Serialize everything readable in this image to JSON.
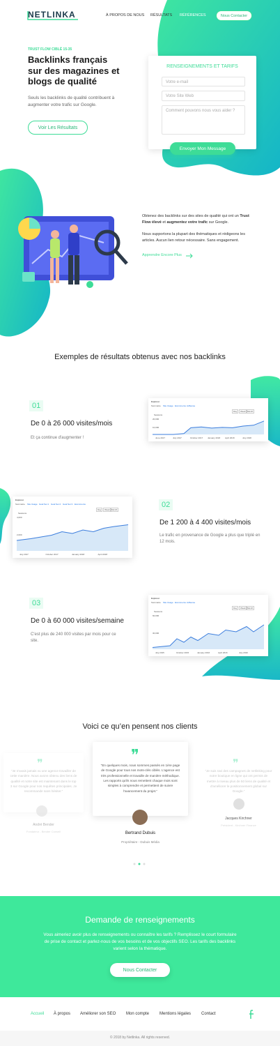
{
  "header": {
    "logo": "NETLINKA",
    "nav": [
      "À PROPOS DE NOUS",
      "RÉSULTATS",
      "RÉFÉRENCES"
    ],
    "cta": "Nous Contacter"
  },
  "hero": {
    "kicker": "TRUST FLOW CIBLÉ 15-35",
    "title": "Backlinks français sur des magazines et blogs de qualité",
    "text": "Seuls les backlinks de qualité contribuent à augmenter votre trafic sur Google.",
    "button": "Voir Les Résultats"
  },
  "form": {
    "title": "RENSEIGNEMENTS ET TARIFS",
    "fields": [
      "Votre e-mail",
      "Votre Site Web",
      "Comment pouvons nous vous aider ?"
    ],
    "button": "Envoyer Mon Message"
  },
  "about": {
    "p1": [
      "Obtenez des backlinks sur des sites de qualité qui ont un ",
      "Trust Flow élevé",
      " et ",
      "augmentez votre trafic",
      " sur Google."
    ],
    "p2": "Nous supportons la plupart des thématiques et rédigeons les articles. Aucun lien retour nécessaire. Sans engagement.",
    "link": "Apprendre Encore Plus"
  },
  "results": {
    "title": "Exemples de résultats obtenus avec nos backlinks",
    "items": [
      {
        "number": "01",
        "title": "De 0 à 26 000 visites/mois",
        "text": "Et ça continue d'augmenter !",
        "chart": {
          "header": "Explorer",
          "tabs": [
            "Sommaire",
            "Site Usage",
            "Ecommerce",
            "AdSense"
          ],
          "buttons": [
            "Day",
            "Week",
            "Month"
          ],
          "legend": "Sessions",
          "y_labels": [
            "20,000",
            "10,000"
          ],
          "x_labels": [
            "June 2017",
            "July 2017",
            "October 2017",
            "January 2018",
            "April 2018",
            "July 2018"
          ]
        }
      },
      {
        "number": "02",
        "title": "De 1 200 à 4 400 visites/mois",
        "text": "Le trafic en provenance de Google a plus que triplé en 12 mois.",
        "chart": {
          "header": "Explorer",
          "tabs": [
            "Sommaire",
            "Site Usage",
            "Goal Set 1",
            "Goal Set 2",
            "Goal Set 3",
            "Ecommerce"
          ],
          "buttons": [
            "Day",
            "Week",
            "Month"
          ],
          "legend": "Sessions",
          "y_labels": [
            "4,000",
            "2,000"
          ],
          "x_labels": [
            "July 2017",
            "October 2017",
            "January 2018",
            "April 2018"
          ]
        }
      },
      {
        "number": "03",
        "title": "De 0 à 60 000 visites/semaine",
        "text": "C'est plus de 240 000 visites par mois pour ce site.",
        "chart": {
          "header": "Explorer",
          "tabs": [
            "Sommaire",
            "Site Usage",
            "Ecommerce",
            "AdSense"
          ],
          "buttons": [
            "Day",
            "Week",
            "Month"
          ],
          "legend": "Sessions",
          "y_labels": [
            "60,000",
            "30,000"
          ],
          "x_labels": [
            "July 2015",
            "October 2015",
            "January 2016",
            "April 2016",
            "July 2016"
          ]
        }
      }
    ]
  },
  "testimonials": {
    "title": "Voici ce qu’en pensent nos clients",
    "items": [
      {
        "quote": "“Je n'avais jamais vu une agence travailler de cette manière. Nous avons obtenu des liens de qualité et notre site est maintenant dans le top 3 sur Google pour nos requêtes principales. Je recommande sans hésiter.”",
        "name": "André Bender",
        "role": "Fondateur - Bender Conseil"
      },
      {
        "quote": "“En quelques mois, nous sommes passés en 1ère page de Google pour tous nos mots-clés ciblés. L'agence est très professionnelle et travaille de manière méthodique. Les rapports qu'ils nous remettent chaque mois sont simples à comprendre et permettent de suivre l'avancement du projet.”",
        "name": "Bertrand Dubuis",
        "role": "Propriétaire - Dubuis Média"
      },
      {
        "quote": "“Je suis ravi des campagnes de netlinking pour notre boutique en ligne qui ont permis de mettre à niveau plus de 50 liens de qualité et d'améliorer le positionnement global sur Google.”",
        "name": "Jacques Kirchner",
        "role": "Président - Kirchner Finance"
      }
    ]
  },
  "cta": {
    "title": "Demande de renseignements",
    "text": "Vous aimeriez avoir plus de renseignements ou connaître les tarifs ? Remplissez le court formulaire de prise de contact et parlez-nous de vos besoins et de vos objectifs SEO. Les tarifs des backlinks varient selon la thématique.",
    "button": "Nous Contacter"
  },
  "footer": {
    "links": [
      "Accueil",
      "À propos",
      "Améliorer son SEO",
      "Mon compte",
      "Mentions légales",
      "Contact"
    ],
    "copyright": "© 2018 by Netlinka. All rights reserved."
  }
}
